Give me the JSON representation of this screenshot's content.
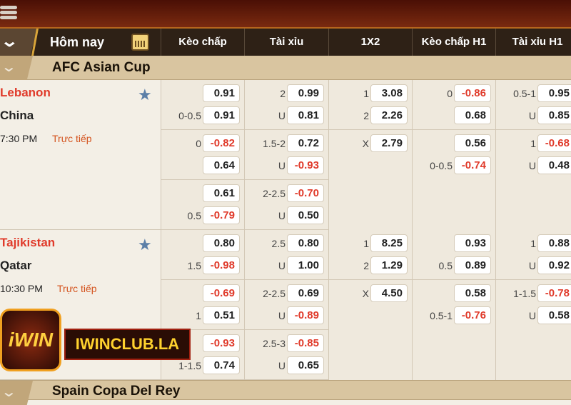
{
  "header": {
    "title": "Hôm nay",
    "menu_icon": "hamburger-icon",
    "calendar_icon": "calendar-icon",
    "columns": [
      "Kèo chấp",
      "Tài xỉu",
      "1X2",
      "Kèo chấp H1",
      "Tài xỉu H1"
    ]
  },
  "colors": {
    "negative": "#e03a2a",
    "live": "#d4541f",
    "star": "#5b7fa8"
  },
  "leagues": [
    {
      "name": "AFC Asian Cup"
    },
    {
      "name": "Spain Copa Del Rey"
    }
  ],
  "matches": [
    {
      "home": "Lebanon",
      "away": "China",
      "time": "7:30 PM",
      "status": "Trực tiếp",
      "home_color": "#e03a2a",
      "odds": [
        [
          [
            [
              "",
              "0.91"
            ],
            [
              "0-0.5",
              "0.91"
            ]
          ],
          [
            [
              "0",
              "-0.82"
            ],
            [
              "",
              "0.64"
            ]
          ],
          [
            [
              "",
              "0.61"
            ],
            [
              "0.5",
              "-0.79"
            ]
          ]
        ],
        [
          [
            [
              "2",
              "0.99"
            ],
            [
              "U",
              "0.81"
            ]
          ],
          [
            [
              "1.5-2",
              "0.72"
            ],
            [
              "U",
              "-0.93"
            ]
          ],
          [
            [
              "2-2.5",
              "-0.70"
            ],
            [
              "U",
              "0.50"
            ]
          ]
        ],
        [
          [
            [
              "1",
              "3.08"
            ],
            [
              "2",
              "2.26"
            ]
          ],
          [
            [
              "X",
              "2.79"
            ]
          ],
          []
        ],
        [
          [
            [
              "0",
              "-0.86"
            ],
            [
              "",
              "0.68"
            ]
          ],
          [
            [
              "",
              "0.56"
            ],
            [
              "0-0.5",
              "-0.74"
            ]
          ],
          []
        ],
        [
          [
            [
              "0.5-1",
              "0.95"
            ],
            [
              "U",
              "0.85"
            ]
          ],
          [
            [
              "1",
              "-0.68"
            ],
            [
              "U",
              "0.48"
            ]
          ],
          []
        ]
      ]
    },
    {
      "home": "Tajikistan",
      "away": "Qatar",
      "time": "10:30 PM",
      "status": "Trực tiếp",
      "home_color": "#e03a2a",
      "odds": [
        [
          [
            [
              "",
              "0.80"
            ],
            [
              "1.5",
              "-0.98"
            ]
          ],
          [
            [
              "",
              "-0.69"
            ],
            [
              "1",
              "0.51"
            ]
          ],
          [
            [
              "",
              "-0.93"
            ],
            [
              "1-1.5",
              "0.74"
            ]
          ]
        ],
        [
          [
            [
              "2.5",
              "0.80"
            ],
            [
              "U",
              "1.00"
            ]
          ],
          [
            [
              "2-2.5",
              "0.69"
            ],
            [
              "U",
              "-0.89"
            ]
          ],
          [
            [
              "2.5-3",
              "-0.85"
            ],
            [
              "U",
              "0.65"
            ]
          ]
        ],
        [
          [
            [
              "1",
              "8.25"
            ],
            [
              "2",
              "1.29"
            ]
          ],
          [
            [
              "X",
              "4.50"
            ]
          ],
          []
        ],
        [
          [
            [
              "",
              "0.93"
            ],
            [
              "0.5",
              "0.89"
            ]
          ],
          [
            [
              "",
              "0.58"
            ],
            [
              "0.5-1",
              "-0.76"
            ]
          ],
          []
        ],
        [
          [
            [
              "1",
              "0.88"
            ],
            [
              "U",
              "0.92"
            ]
          ],
          [
            [
              "1-1.5",
              "-0.78"
            ],
            [
              "U",
              "0.58"
            ]
          ],
          []
        ]
      ]
    }
  ],
  "watermark": {
    "logo_text": "iWIN",
    "banner_text": "IWINCLUB.LA"
  }
}
